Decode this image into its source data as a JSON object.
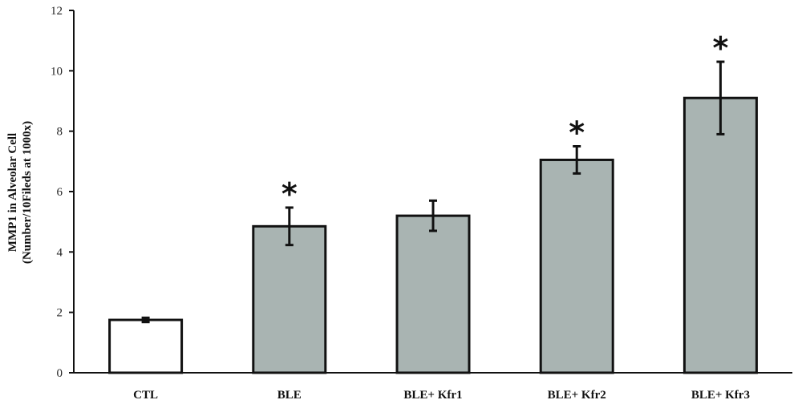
{
  "chart_data": {
    "type": "bar",
    "categories": [
      "CTL",
      "BLE",
      "BLE+ Kfr1",
      "BLE+ Kfr2",
      "BLE+ Kfr3"
    ],
    "values": [
      1.75,
      4.85,
      5.2,
      7.05,
      9.1
    ],
    "errors": [
      0.07,
      0.62,
      0.5,
      0.45,
      1.2
    ],
    "significance": [
      "",
      "*",
      "",
      "*",
      "*"
    ],
    "fill_colors": [
      "#ffffff",
      "#a9b4b2",
      "#a9b4b2",
      "#a9b4b2",
      "#a9b4b2"
    ],
    "ylabel_lines": [
      "MMP1 in Alveolar Cell",
      "(Number/10Fileds at 1000x)"
    ],
    "xlabel": "",
    "ylim": [
      0,
      12
    ],
    "yticks": [
      0,
      2,
      4,
      6,
      8,
      10,
      12
    ],
    "grid": false,
    "legend": "none"
  }
}
